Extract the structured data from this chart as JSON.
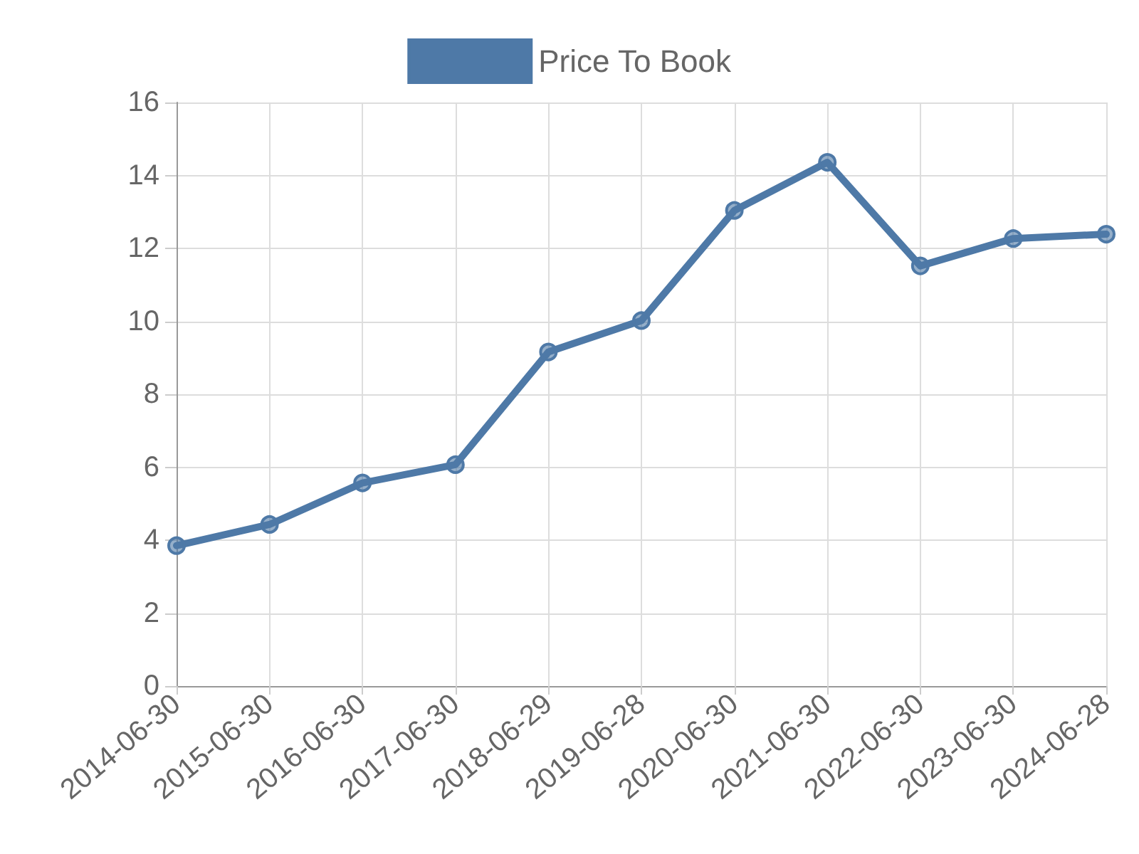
{
  "chart_data": {
    "type": "line",
    "categories": [
      "2014-06-30",
      "2015-06-30",
      "2016-06-30",
      "2017-06-30",
      "2018-06-29",
      "2019-06-28",
      "2020-06-30",
      "2021-06-30",
      "2022-06-30",
      "2023-06-30",
      "2024-06-28"
    ],
    "series": [
      {
        "name": "Price To Book",
        "color": "#4e79a7",
        "values": [
          3.85,
          4.43,
          5.57,
          6.07,
          9.16,
          10.02,
          13.04,
          14.36,
          11.52,
          12.27,
          12.39
        ]
      }
    ],
    "ylim": [
      0,
      16
    ],
    "yticks": [
      0,
      2,
      4,
      6,
      8,
      10,
      12,
      14,
      16
    ],
    "grid": true,
    "legend": "top",
    "marker": "circle",
    "line_style": "solid"
  }
}
